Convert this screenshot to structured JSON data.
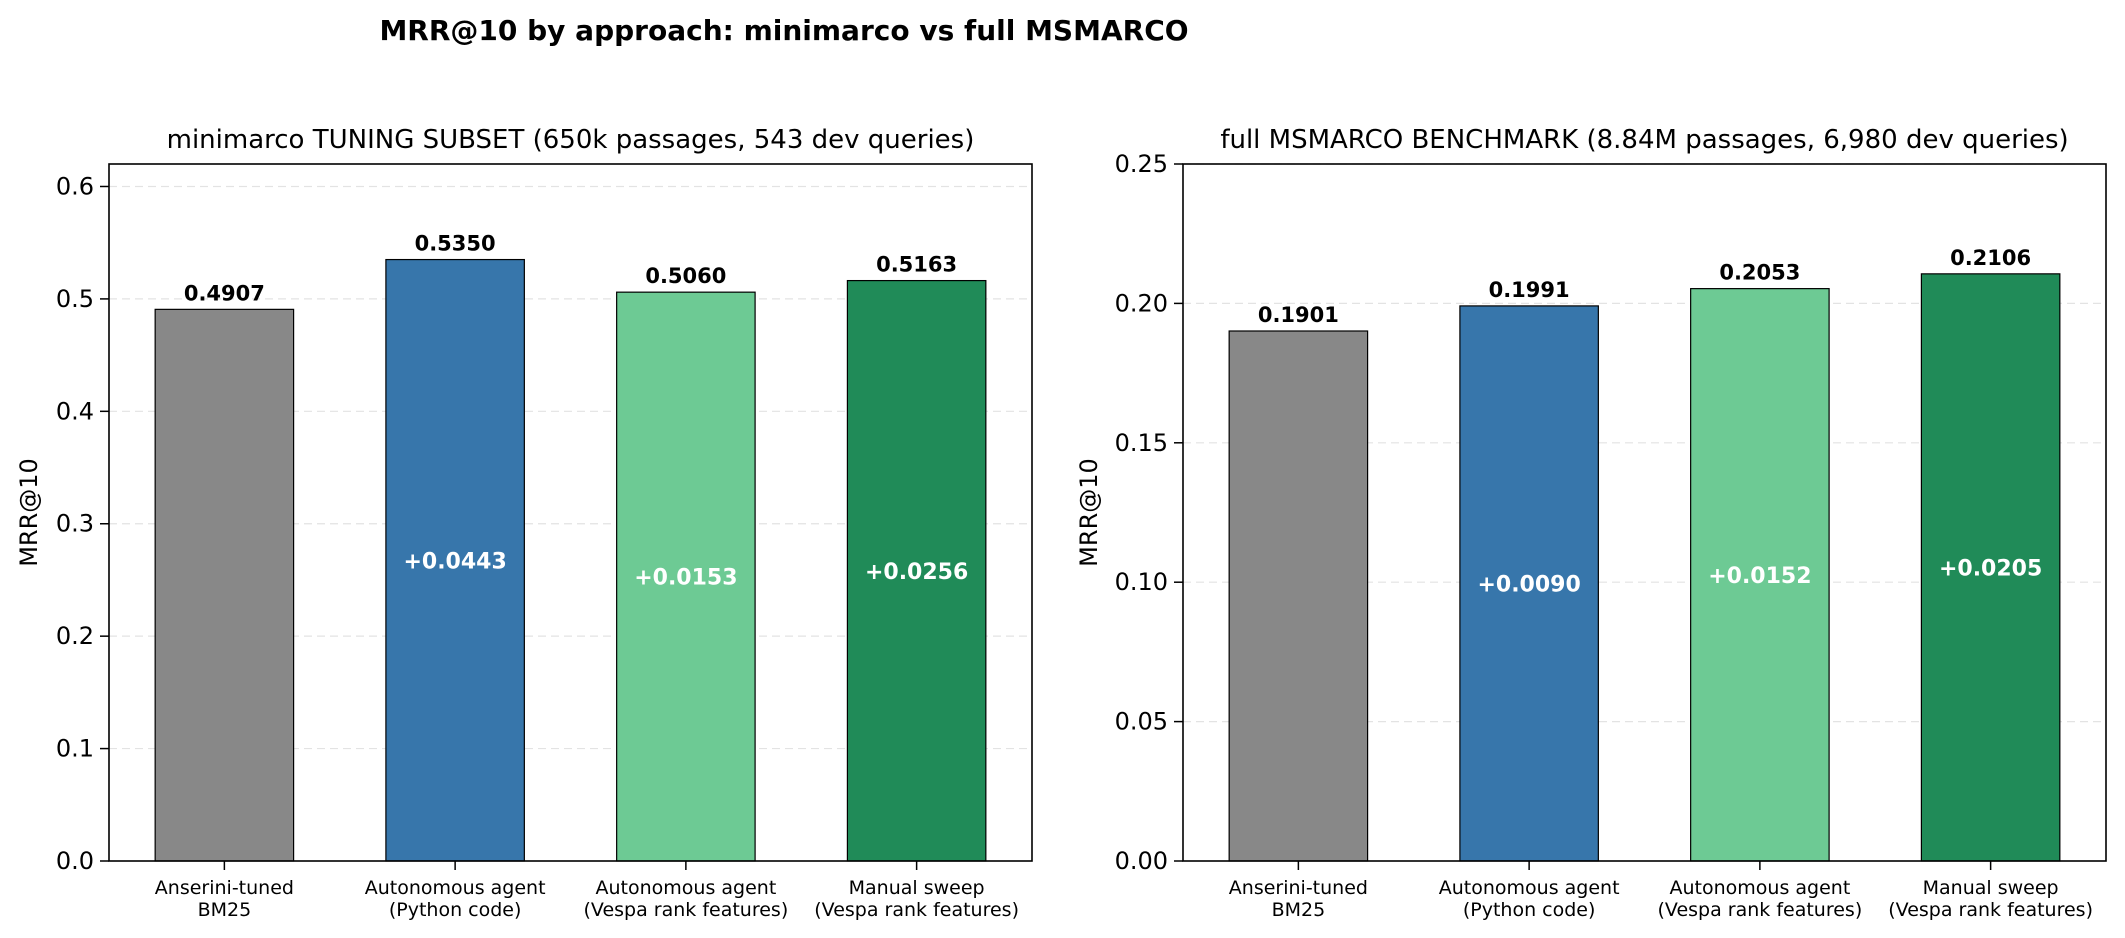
{
  "figure": {
    "title": "MRR@10 by approach: minimarco vs full MSMARCO"
  },
  "chart_data": [
    {
      "type": "bar",
      "title": "minimarco TUNING SUBSET (650k passages, 543 dev queries)",
      "xlabel": "",
      "ylabel": "MRR@10",
      "ylim": [
        0,
        0.62
      ],
      "yticks": [
        "0.0",
        "0.1",
        "0.2",
        "0.3",
        "0.4",
        "0.5",
        "0.6"
      ],
      "grid": true,
      "categories": [
        [
          "Anserini-tuned",
          "BM25"
        ],
        [
          "Autonomous agent",
          "(Python code)"
        ],
        [
          "Autonomous agent",
          "(Vespa rank features)"
        ],
        [
          "Manual sweep",
          "(Vespa rank features)"
        ]
      ],
      "values": [
        0.4907,
        0.535,
        0.506,
        0.5163
      ],
      "value_labels": [
        "0.4907",
        "0.5350",
        "0.5060",
        "0.5163"
      ],
      "delta_labels": [
        "",
        "+0.0443",
        "+0.0153",
        "+0.0256"
      ],
      "colors": [
        "#888888",
        "#3776ab",
        "#6dca94",
        "#208b58"
      ]
    },
    {
      "type": "bar",
      "title": "full MSMARCO BENCHMARK (8.84M passages, 6,980 dev queries)",
      "xlabel": "",
      "ylabel": "MRR@10",
      "ylim": [
        0,
        0.25
      ],
      "yticks": [
        "0.00",
        "0.05",
        "0.10",
        "0.15",
        "0.20",
        "0.25"
      ],
      "grid": true,
      "categories": [
        [
          "Anserini-tuned",
          "BM25"
        ],
        [
          "Autonomous agent",
          "(Python code)"
        ],
        [
          "Autonomous agent",
          "(Vespa rank features)"
        ],
        [
          "Manual sweep",
          "(Vespa rank features)"
        ]
      ],
      "values": [
        0.1901,
        0.1991,
        0.2053,
        0.2106
      ],
      "value_labels": [
        "0.1901",
        "0.1991",
        "0.2053",
        "0.2106"
      ],
      "delta_labels": [
        "",
        "+0.0090",
        "+0.0152",
        "+0.0205"
      ],
      "colors": [
        "#888888",
        "#3776ab",
        "#6dca94",
        "#208b58"
      ]
    }
  ]
}
